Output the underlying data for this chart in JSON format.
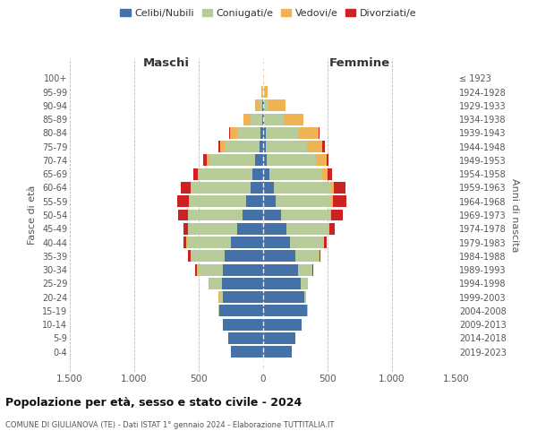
{
  "age_groups": [
    "0-4",
    "5-9",
    "10-14",
    "15-19",
    "20-24",
    "25-29",
    "30-34",
    "35-39",
    "40-44",
    "45-49",
    "50-54",
    "55-59",
    "60-64",
    "65-69",
    "70-74",
    "75-79",
    "80-84",
    "85-89",
    "90-94",
    "95-99",
    "100+"
  ],
  "birth_years": [
    "2019-2023",
    "2014-2018",
    "2009-2013",
    "2004-2008",
    "1999-2003",
    "1994-1998",
    "1989-1993",
    "1984-1988",
    "1979-1983",
    "1974-1978",
    "1969-1973",
    "1964-1968",
    "1959-1963",
    "1954-1958",
    "1949-1953",
    "1944-1948",
    "1939-1943",
    "1934-1938",
    "1929-1933",
    "1924-1928",
    "≤ 1923"
  ],
  "colors": {
    "celibi": "#4472a8",
    "coniugati": "#b8cc9a",
    "vedovi": "#f0b354",
    "divorziati": "#cc2222"
  },
  "maschi": {
    "celibi": [
      250,
      270,
      310,
      340,
      310,
      320,
      310,
      300,
      250,
      200,
      160,
      130,
      100,
      80,
      60,
      30,
      20,
      10,
      5,
      2,
      2
    ],
    "coniugati": [
      0,
      0,
      0,
      5,
      30,
      100,
      200,
      260,
      340,
      380,
      420,
      440,
      460,
      420,
      360,
      270,
      180,
      90,
      30,
      5,
      0
    ],
    "vedovi": [
      0,
      0,
      0,
      0,
      5,
      5,
      5,
      5,
      5,
      5,
      5,
      5,
      5,
      10,
      20,
      30,
      60,
      55,
      30,
      5,
      0
    ],
    "divorziati": [
      0,
      0,
      0,
      0,
      0,
      0,
      10,
      15,
      20,
      35,
      75,
      90,
      75,
      30,
      25,
      20,
      5,
      0,
      0,
      0,
      0
    ]
  },
  "femmine": {
    "celibi": [
      220,
      250,
      300,
      340,
      320,
      290,
      270,
      250,
      210,
      180,
      140,
      100,
      80,
      50,
      30,
      20,
      20,
      10,
      5,
      2,
      2
    ],
    "coniugati": [
      0,
      0,
      0,
      5,
      15,
      60,
      110,
      180,
      260,
      330,
      380,
      430,
      450,
      410,
      380,
      320,
      260,
      150,
      40,
      5,
      0
    ],
    "vedovi": [
      0,
      0,
      0,
      0,
      0,
      0,
      5,
      5,
      5,
      5,
      10,
      15,
      20,
      40,
      80,
      120,
      150,
      150,
      130,
      30,
      2
    ],
    "divorziati": [
      0,
      0,
      0,
      0,
      0,
      0,
      5,
      10,
      15,
      40,
      90,
      100,
      90,
      35,
      20,
      20,
      5,
      0,
      0,
      0,
      0
    ]
  },
  "title": "Popolazione per età, sesso e stato civile - 2024",
  "subtitle": "COMUNE DI GIULIANOVA (TE) - Dati ISTAT 1° gennaio 2024 - Elaborazione TUTTITALIA.IT",
  "ylabel_left": "Fasce di età",
  "ylabel_right": "Anni di nascita",
  "xlabel_left": "Maschi",
  "xlabel_right": "Femmine",
  "xlim": 1500,
  "background_color": "#ffffff",
  "grid_color": "#bbbbbb"
}
